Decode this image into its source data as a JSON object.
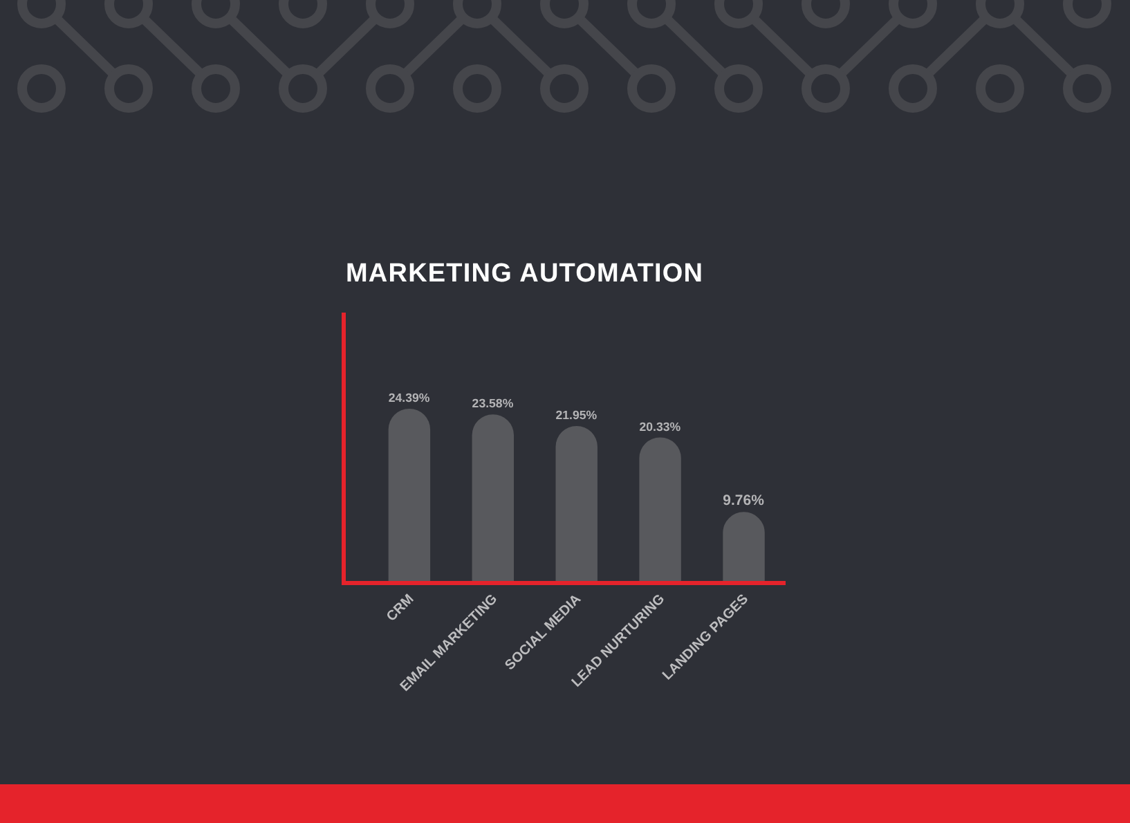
{
  "chart_data": {
    "type": "bar",
    "title": "MARKETING AUTOMATION",
    "categories": [
      "CRM",
      "EMAIL MARKETING",
      "SOCIAL MEDIA",
      "LEAD NURTURING",
      "LANDING PAGES"
    ],
    "values": [
      24.39,
      23.58,
      21.95,
      20.33,
      9.76
    ],
    "value_labels": [
      "24.39%",
      "23.58%",
      "21.95%",
      "20.33%",
      "9.76%"
    ],
    "color": "#58595d",
    "ylim": [
      0,
      38
    ],
    "tick_labels": "x"
  }
}
